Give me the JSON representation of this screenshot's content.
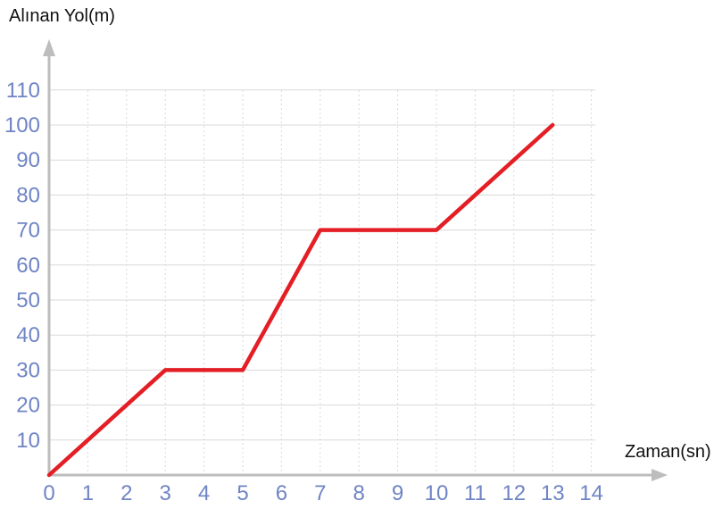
{
  "chart_data": {
    "type": "line",
    "ylabel": "Alınan Yol(m)",
    "xlabel": "Zaman(sn)",
    "x_ticks": [
      "0",
      "1",
      "2",
      "3",
      "4",
      "5",
      "6",
      "7",
      "8",
      "9",
      "10",
      "11",
      "12",
      "13",
      "14"
    ],
    "y_ticks": [
      "10",
      "20",
      "30",
      "40",
      "50",
      "60",
      "70",
      "80",
      "90",
      "100",
      "110"
    ],
    "xlim": [
      0,
      14
    ],
    "ylim": [
      0,
      110
    ],
    "grid": true,
    "series": [
      {
        "x": [
          0,
          3,
          5,
          7,
          10,
          13
        ],
        "y": [
          0,
          30,
          30,
          70,
          70,
          100
        ],
        "color": "#e41e25"
      }
    ],
    "colors": {
      "tick_labels": "#6f84c4",
      "grid": "#d9d9d9",
      "axis": "#bdbdbd",
      "line": "#e41e25"
    }
  }
}
